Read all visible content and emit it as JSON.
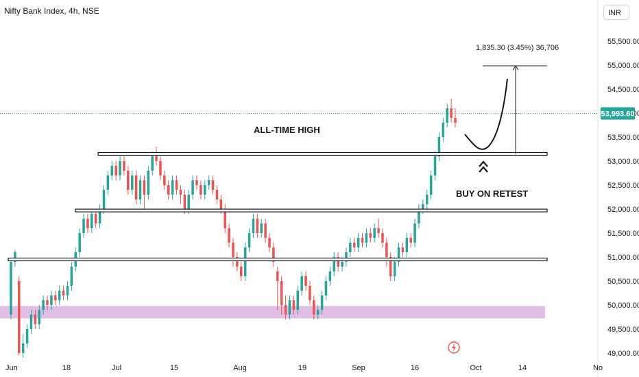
{
  "header": {
    "symbol_title": "Nifty Bank Index, 4h, NSE",
    "currency": "INR"
  },
  "colors": {
    "up": "#26a69a",
    "down": "#ef5350",
    "price_line": "#26a69a",
    "zone": "#e1bee7",
    "annotation": "#131722"
  },
  "chart_data": {
    "type": "candlestick",
    "title": "Nifty Bank Index, 4h, NSE",
    "ylim": [
      48900,
      56100
    ],
    "y_ticks": [
      "55,500.00",
      "55,000.00",
      "54,500.00",
      "54,000.00",
      "53,500.00",
      "53,000.00",
      "52,500.00",
      "52,000.00",
      "51,500.00",
      "51,000.00",
      "50,500.00",
      "50,000.00",
      "49,500.00",
      "49,000.00"
    ],
    "y_tick_values": [
      55500,
      55000,
      54500,
      54000,
      53500,
      53000,
      52500,
      52000,
      51500,
      51000,
      50500,
      50000,
      49500,
      49000
    ],
    "x_ticks": [
      "Jun",
      "18",
      "Jul",
      "15",
      "Aug",
      "19",
      "Sep",
      "16",
      "Oct",
      "14",
      "No"
    ],
    "last_price": {
      "label": "53,993.60",
      "value": 53993.6
    },
    "levels": [
      {
        "name": "all-time-high",
        "value": 53150
      },
      {
        "name": "support-52000",
        "value": 51970
      },
      {
        "name": "support-51000",
        "value": 50950
      }
    ],
    "demand_zone": [
      49720,
      49980
    ],
    "measure": {
      "label": "1,835.30 (3.45%) 36,706",
      "from": 53150,
      "to": 54985.3
    },
    "annotations": {
      "ath": "ALL-TIME HIGH",
      "buy": "BUY ON RETEST"
    },
    "candles": [
      [
        49800,
        50900,
        49700,
        50950
      ],
      [
        50900,
        51100,
        50800,
        51150
      ],
      [
        50500,
        49000,
        48950,
        50600
      ],
      [
        49000,
        49200,
        48900,
        49400
      ],
      [
        49200,
        49500,
        49100,
        49600
      ],
      [
        49500,
        49800,
        49400,
        49900
      ],
      [
        49800,
        49600,
        49500,
        49900
      ],
      [
        49600,
        49900,
        49500,
        50000
      ],
      [
        49900,
        50100,
        49800,
        50200
      ],
      [
        50100,
        50000,
        49900,
        50200
      ],
      [
        50000,
        50200,
        49900,
        50300
      ],
      [
        50200,
        50100,
        50000,
        50300
      ],
      [
        50100,
        50300,
        50000,
        50400
      ],
      [
        50300,
        50200,
        50100,
        50400
      ],
      [
        50200,
        50400,
        50100,
        50500
      ],
      [
        50400,
        50800,
        50300,
        50900
      ],
      [
        50800,
        51100,
        50700,
        51200
      ],
      [
        51100,
        51500,
        51000,
        51600
      ],
      [
        51500,
        51800,
        51400,
        51900
      ],
      [
        51800,
        51600,
        51500,
        51900
      ],
      [
        51600,
        51900,
        51500,
        52000
      ],
      [
        51900,
        51700,
        51600,
        52000
      ],
      [
        51700,
        51950,
        51600,
        52100
      ],
      [
        51950,
        52400,
        51900,
        52500
      ],
      [
        52400,
        52700,
        52300,
        52800
      ],
      [
        52700,
        52900,
        52600,
        53000
      ],
      [
        52900,
        52700,
        52600,
        53000
      ],
      [
        52700,
        53000,
        52600,
        53100
      ],
      [
        53000,
        52800,
        52700,
        53100
      ],
      [
        52800,
        52400,
        52300,
        52900
      ],
      [
        52400,
        52700,
        52300,
        52800
      ],
      [
        52700,
        52200,
        52100,
        52800
      ],
      [
        52200,
        52600,
        52100,
        52700
      ],
      [
        52600,
        52300,
        52000,
        52700
      ],
      [
        52300,
        52800,
        52200,
        52900
      ],
      [
        52800,
        53100,
        52700,
        53200
      ],
      [
        53100,
        53000,
        52900,
        53300
      ],
      [
        53000,
        52700,
        52600,
        53100
      ],
      [
        52700,
        52500,
        52400,
        52800
      ],
      [
        52500,
        52300,
        52200,
        52600
      ],
      [
        52300,
        52600,
        52200,
        52700
      ],
      [
        52600,
        52400,
        52300,
        52700
      ],
      [
        52400,
        52300,
        52100,
        52500
      ],
      [
        52300,
        52000,
        51900,
        52400
      ],
      [
        52000,
        52300,
        51900,
        52400
      ],
      [
        52300,
        52600,
        52200,
        52700
      ],
      [
        52600,
        52500,
        52400,
        52700
      ],
      [
        52500,
        52300,
        52200,
        52600
      ],
      [
        52300,
        52500,
        52200,
        52600
      ],
      [
        52500,
        52600,
        52400,
        52700
      ],
      [
        52600,
        52400,
        52300,
        52700
      ],
      [
        52400,
        52200,
        52100,
        52500
      ],
      [
        52200,
        52000,
        51900,
        52300
      ],
      [
        52000,
        51600,
        51500,
        52100
      ],
      [
        51600,
        51300,
        51200,
        51700
      ],
      [
        51300,
        51000,
        50800,
        51400
      ],
      [
        51000,
        50800,
        50700,
        51100
      ],
      [
        50800,
        50600,
        50500,
        50900
      ],
      [
        50600,
        51200,
        50500,
        51300
      ],
      [
        51200,
        51500,
        51100,
        51600
      ],
      [
        51500,
        51800,
        51400,
        51900
      ],
      [
        51800,
        51500,
        51400,
        51900
      ],
      [
        51500,
        51700,
        51400,
        51800
      ],
      [
        51700,
        51400,
        51300,
        51800
      ],
      [
        51400,
        51200,
        51100,
        51500
      ],
      [
        51200,
        50900,
        50800,
        51300
      ],
      [
        50700,
        50500,
        49900,
        50800
      ],
      [
        50500,
        50000,
        49800,
        50600
      ],
      [
        50000,
        49800,
        49700,
        50200
      ],
      [
        49800,
        50100,
        49700,
        50200
      ],
      [
        50100,
        49900,
        49800,
        50200
      ],
      [
        49900,
        50300,
        49800,
        50400
      ],
      [
        50300,
        50600,
        50200,
        50700
      ],
      [
        50600,
        50400,
        50300,
        50700
      ],
      [
        50400,
        50100,
        50000,
        50500
      ],
      [
        50100,
        49800,
        49700,
        50200
      ],
      [
        49800,
        49900,
        49700,
        50000
      ],
      [
        49900,
        50200,
        49800,
        50300
      ],
      [
        50200,
        50500,
        50100,
        50600
      ],
      [
        50500,
        50700,
        50400,
        50800
      ],
      [
        50700,
        51000,
        50600,
        51100
      ],
      [
        51000,
        50800,
        50700,
        51100
      ],
      [
        50800,
        50900,
        50700,
        51000
      ],
      [
        50900,
        51100,
        50800,
        51200
      ],
      [
        51100,
        51300,
        51000,
        51400
      ],
      [
        51300,
        51200,
        51100,
        51400
      ],
      [
        51200,
        51400,
        51100,
        51500
      ],
      [
        51400,
        51300,
        51200,
        51500
      ],
      [
        51300,
        51500,
        51200,
        51600
      ],
      [
        51500,
        51400,
        51300,
        51600
      ],
      [
        51400,
        51600,
        51300,
        51700
      ],
      [
        51600,
        51500,
        51400,
        51800
      ],
      [
        51500,
        51300,
        51200,
        51600
      ],
      [
        51300,
        51000,
        50800,
        51400
      ],
      [
        51000,
        50600,
        50500,
        51100
      ],
      [
        50600,
        50900,
        50500,
        51000
      ],
      [
        50900,
        51200,
        50800,
        51300
      ],
      [
        51200,
        51100,
        51000,
        51300
      ],
      [
        51100,
        51400,
        51000,
        51500
      ],
      [
        51400,
        51300,
        51200,
        51500
      ],
      [
        51300,
        51700,
        51200,
        51800
      ],
      [
        51700,
        52000,
        51600,
        52100
      ],
      [
        52000,
        52100,
        51900,
        52200
      ],
      [
        52100,
        52300,
        52000,
        52400
      ],
      [
        52300,
        52700,
        52200,
        52800
      ],
      [
        52700,
        53100,
        52600,
        53200
      ],
      [
        53100,
        53500,
        53000,
        53600
      ],
      [
        53500,
        53800,
        53400,
        53900
      ],
      [
        53800,
        54100,
        53700,
        54200
      ],
      [
        54100,
        53900,
        53800,
        54300
      ],
      [
        53900,
        53800,
        53700,
        54100
      ]
    ]
  }
}
